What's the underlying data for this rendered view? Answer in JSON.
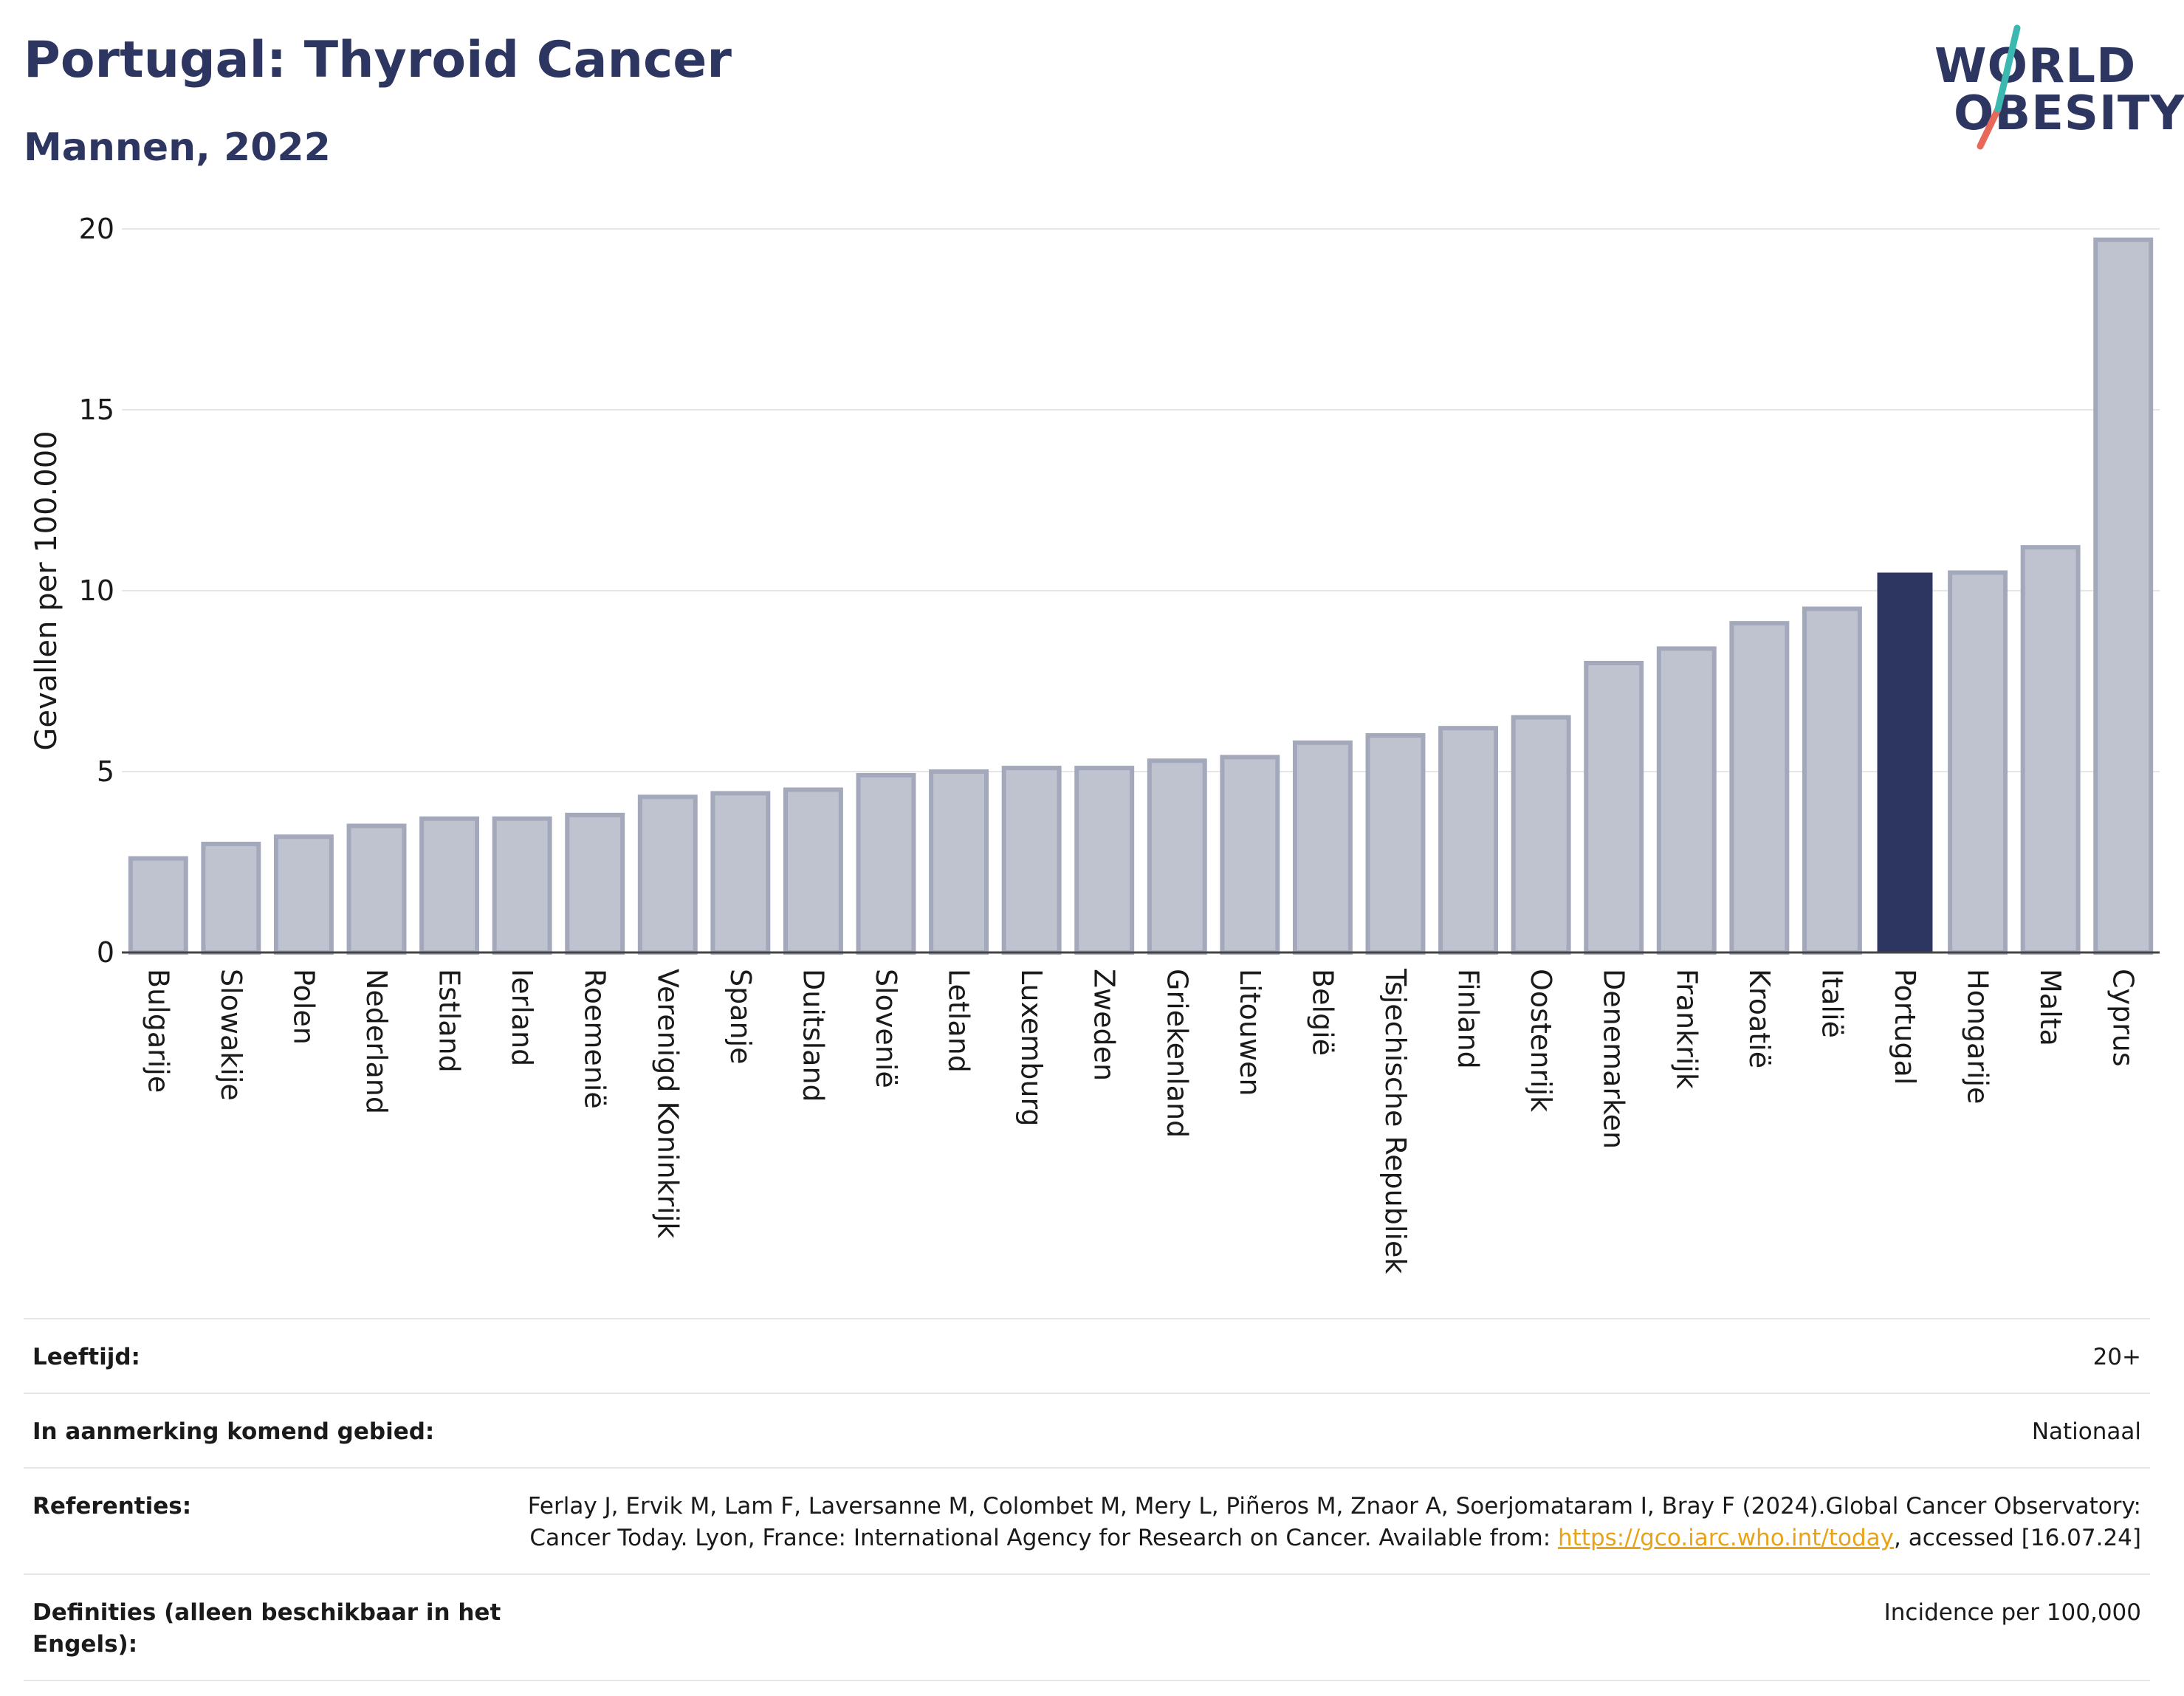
{
  "header": {
    "title": "Portugal: Thyroid Cancer",
    "subtitle": "Mannen, 2022"
  },
  "logo": {
    "line1": "WORLD",
    "line2": "OBESITY",
    "slash_colors": [
      "#3bb8b0",
      "#e8685a"
    ]
  },
  "chart_data": {
    "type": "bar",
    "ylabel": "Gevallen per 100.000",
    "ylim": [
      0,
      20
    ],
    "yticks": [
      0,
      5,
      10,
      15,
      20
    ],
    "grid": true,
    "highlight": "Portugal",
    "colors": {
      "bar": "#bfc3cf",
      "bar_edge": "#a3a8bb",
      "highlight": "#2d3561"
    },
    "categories": [
      "Bulgarije",
      "Slowakije",
      "Polen",
      "Nederland",
      "Estland",
      "Ierland",
      "Roemenië",
      "Verenigd Koninkrijk",
      "Spanje",
      "Duitsland",
      "Slovenië",
      "Letland",
      "Luxemburg",
      "Zweden",
      "Griekenland",
      "Litouwen",
      "België",
      "Tsjechische Republiek",
      "Finland",
      "Oostenrijk",
      "Denemarken",
      "Frankrijk",
      "Kroatië",
      "Italië",
      "Portugal",
      "Hongarije",
      "Malta",
      "Cyprus"
    ],
    "values": [
      2.6,
      3.0,
      3.2,
      3.5,
      3.7,
      3.7,
      3.8,
      4.3,
      4.4,
      4.5,
      4.9,
      5.0,
      5.1,
      5.1,
      5.3,
      5.4,
      5.8,
      6.0,
      6.2,
      6.5,
      8.0,
      8.4,
      9.1,
      9.5,
      10.5,
      10.5,
      11.2,
      19.7
    ]
  },
  "info": {
    "age_label": "Leeftijd:",
    "age_value": "20+",
    "area_label": "In aanmerking komend gebied:",
    "area_value": "Nationaal",
    "ref_label": "Referenties:",
    "ref_text_1": "Ferlay J, Ervik M, Lam F, Laversanne M, Colombet M, Mery L, Piñeros M, Znaor A, Soerjomataram I, Bray F (2024).Global Cancer Observatory: Cancer Today. Lyon, France: International Agency for Research on Cancer. Available from: ",
    "ref_link": "https://gco.iarc.who.int/today",
    "ref_text_2": ", accessed [16.07.24]",
    "def_label": "Definities (alleen beschikbaar in het Engels):",
    "def_value": "Incidence per 100,000"
  }
}
